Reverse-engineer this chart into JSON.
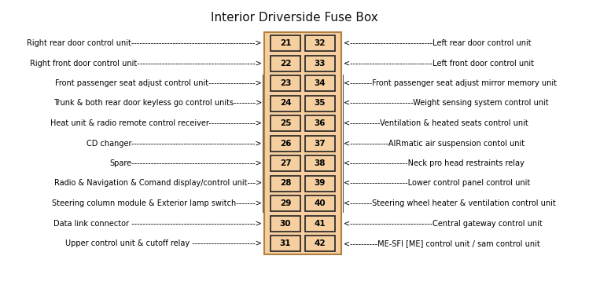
{
  "title": "Interior Driverside Fuse Box",
  "title_fontsize": 11,
  "background_color": "#ffffff",
  "fuse_box_color": "#f5cfa0",
  "fuse_box_border": "#b08040",
  "fuse_cell_color": "#f5cfa0",
  "fuse_border_color": "#222222",
  "fuse_text_color": "#000000",
  "rows": [
    {
      "left_num": "21",
      "right_num": "32",
      "left_label": "Right rear door control unit",
      "left_dashes": "--------------------------------------------->",
      "right_dashes": "<------------------------------",
      "right_label": "Left rear door control unit"
    },
    {
      "left_num": "22",
      "right_num": "33",
      "left_label": "Right front door control unit",
      "left_dashes": "------------------------------------------->",
      "right_dashes": "<------------------------------",
      "right_label": "Left front door control unit"
    },
    {
      "left_num": "23",
      "right_num": "34",
      "left_label": "Front passenger seat adjust control unit",
      "left_dashes": "----------------->",
      "right_dashes": "<--------",
      "right_label": "Front passenger seat adjust mirror memory unit"
    },
    {
      "left_num": "24",
      "right_num": "35",
      "left_label": "Trunk & both rear door keyless go control units",
      "left_dashes": "-------->",
      "right_dashes": "<-----------------------",
      "right_label": "Weight sensing system control unit"
    },
    {
      "left_num": "25",
      "right_num": "36",
      "left_label": "Heat unit & radio remote control receiver",
      "left_dashes": "----------------->",
      "right_dashes": "<-----------",
      "right_label": "Ventilation & heated seats control unit"
    },
    {
      "left_num": "26",
      "right_num": "37",
      "left_label": "CD changer",
      "left_dashes": "--------------------------------------------->",
      "right_dashes": "<--------------",
      "right_label": "AIRmatic air suspension contol unit"
    },
    {
      "left_num": "27",
      "right_num": "38",
      "left_label": "Spare",
      "left_dashes": "--------------------------------------------->",
      "right_dashes": "<---------------------",
      "right_label": "Neck pro head restraints relay"
    },
    {
      "left_num": "28",
      "right_num": "39",
      "left_label": "Radio & Navigation & Comand display/control unit",
      "left_dashes": "--->",
      "right_dashes": "<---------------------",
      "right_label": "Lower control panel control unit"
    },
    {
      "left_num": "29",
      "right_num": "40",
      "left_label": "Steering column module & Exterior lamp switch",
      "left_dashes": "------->",
      "right_dashes": "<--------",
      "right_label": "Steering wheel heater & ventilation control unit"
    },
    {
      "left_num": "30",
      "right_num": "41",
      "left_label": "Data link connector",
      "left_dashes": " --------------------------------------------->",
      "right_dashes": "<------------------------------",
      "right_label": "Central gateway control unit"
    },
    {
      "left_num": "31",
      "right_num": "42",
      "left_label": "Upper control unit & cutoff relay",
      "left_dashes": " ----------------------->",
      "right_dashes": "<----------",
      "right_label": "ME-SFI [ME] control unit / sam control unit"
    }
  ]
}
